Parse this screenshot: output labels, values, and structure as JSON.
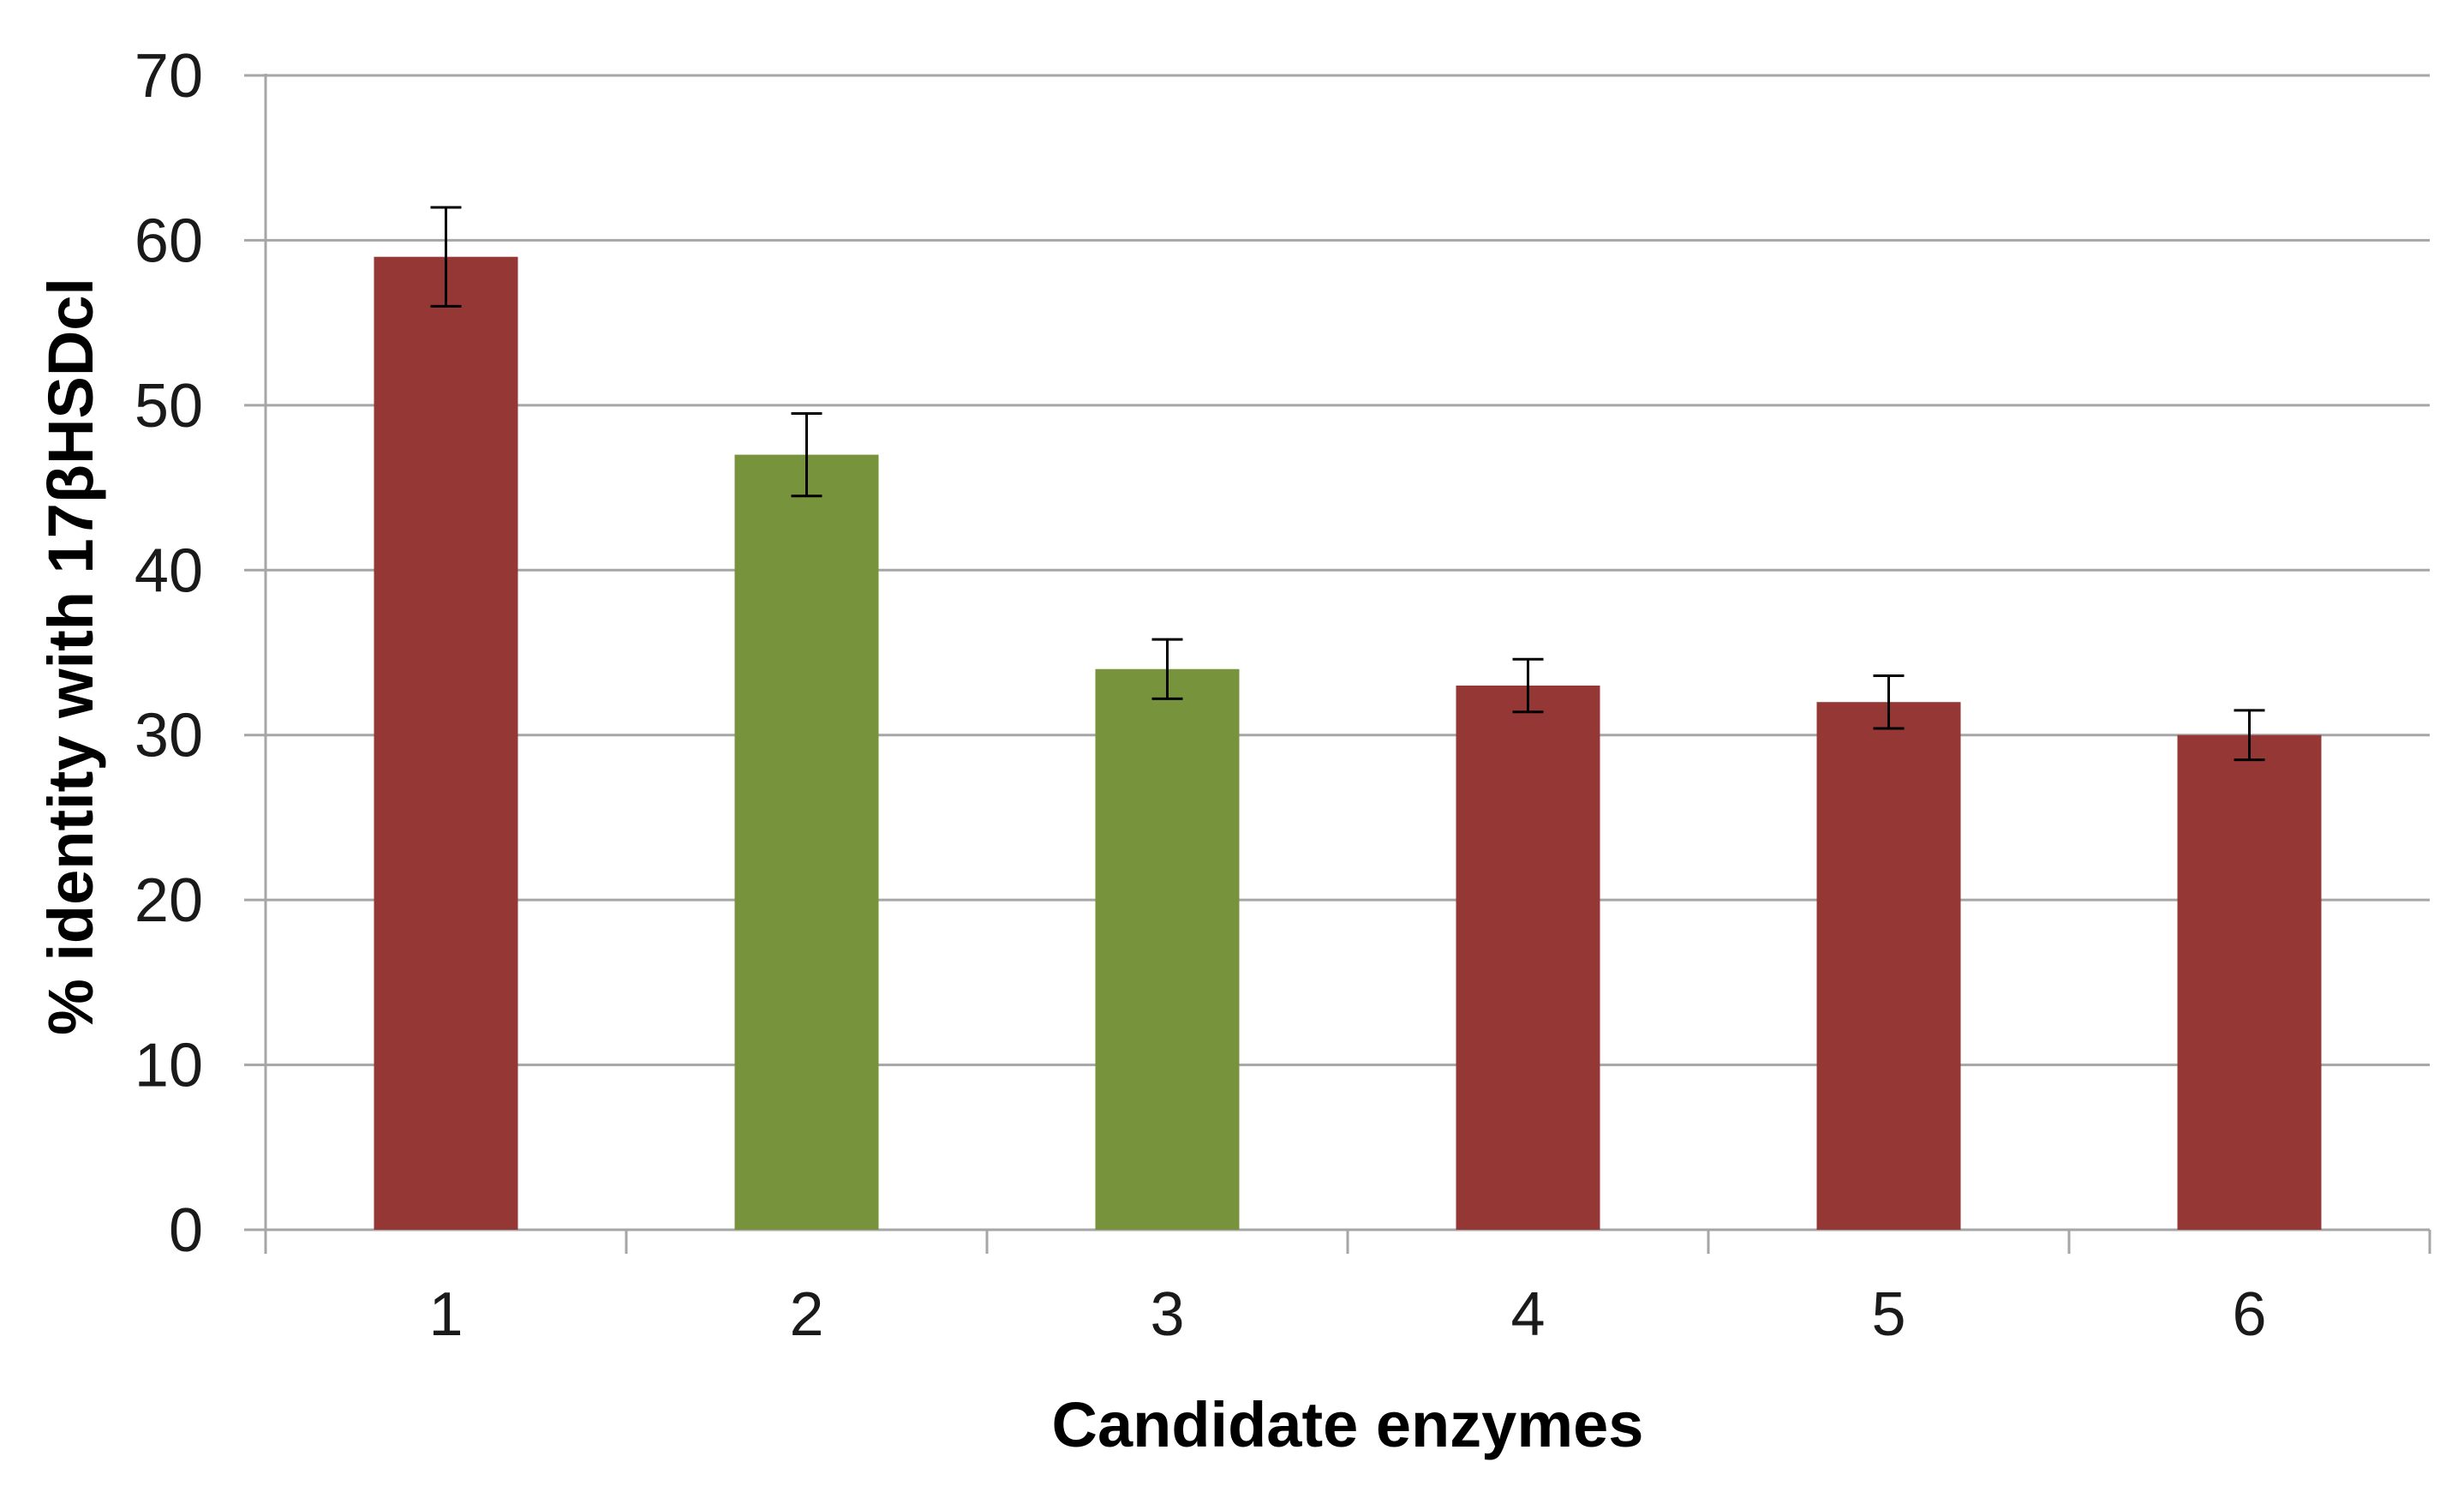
{
  "chart_data": {
    "type": "bar",
    "categories": [
      "1",
      "2",
      "3",
      "4",
      "5",
      "6"
    ],
    "values": [
      59,
      47,
      34,
      33,
      32,
      30
    ],
    "errors": [
      3,
      2.5,
      1.8,
      1.6,
      1.6,
      1.5
    ],
    "bar_colors": [
      "#953735",
      "#77933c",
      "#77933c",
      "#953735",
      "#953735",
      "#953735"
    ],
    "title": "",
    "xlabel": "Candidate enzymes",
    "ylabel": "% identity with  17βHSDcl",
    "ylim": [
      0,
      70
    ],
    "yticks": [
      "0",
      "10",
      "20",
      "30",
      "40",
      "50",
      "60",
      "70"
    ],
    "grid": true,
    "legend": "none"
  },
  "colors": {
    "red_bar": "#953735",
    "green_bar": "#77933c",
    "gridline": "#a6a6a6",
    "error_bar": "#000000"
  }
}
